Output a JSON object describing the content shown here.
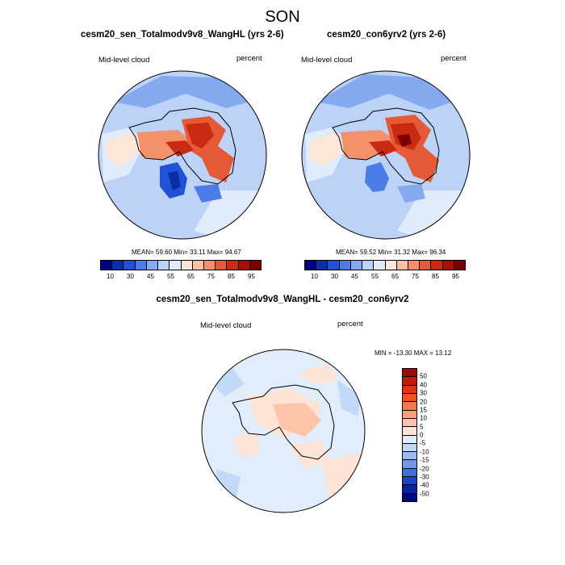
{
  "figure": {
    "title": "SON"
  },
  "panels": [
    {
      "title": "cesm20_sen_Totalmodv9v8_WangHL (yrs 2-6)",
      "left_label": "Mid-level cloud",
      "right_label": "percent",
      "stats": "MEAN=  59.60  Min=  33.11  Max=  94.67"
    },
    {
      "title": "cesm20_con6yrv2 (yrs 2-6)",
      "left_label": "Mid-level cloud",
      "right_label": "percent",
      "stats": "MEAN=  59.52  Min=  31.32  Max=  96.34"
    },
    {
      "title": "cesm20_sen_Totalmodv9v8_WangHL - cesm20_con6yrv2",
      "left_label": "Mid-level cloud",
      "right_label": "percent",
      "stats": "MIN = -13.30  MAX =  13.12"
    }
  ],
  "colorbar_abs": {
    "labels": [
      "10",
      "30",
      "45",
      "55",
      "65",
      "75",
      "85",
      "95"
    ],
    "colors": [
      "#00007f",
      "#0a2ea8",
      "#2152d6",
      "#4b7ce8",
      "#86aaf0",
      "#bcd2f7",
      "#e0ecfb",
      "#fde6d8",
      "#fac0a4",
      "#f3916b",
      "#e55a36",
      "#c92b12",
      "#a51008",
      "#7a0000"
    ]
  },
  "colorbar_diff": {
    "labels": [
      "50",
      "40",
      "30",
      "20",
      "15",
      "10",
      "5",
      "0",
      "-5",
      "-10",
      "-15",
      "-20",
      "-30",
      "-40",
      "-50"
    ],
    "colors": [
      "#9b0d04",
      "#c21a08",
      "#e53210",
      "#f3521f",
      "#f87a44",
      "#fba27a",
      "#fdc4a8",
      "#fee4d6",
      "#e2edfb",
      "#c2d8f7",
      "#9dbdf2",
      "#6f98ea",
      "#3d6fe0",
      "#1a41c8",
      "#0a22a0",
      "#000a78"
    ]
  }
}
